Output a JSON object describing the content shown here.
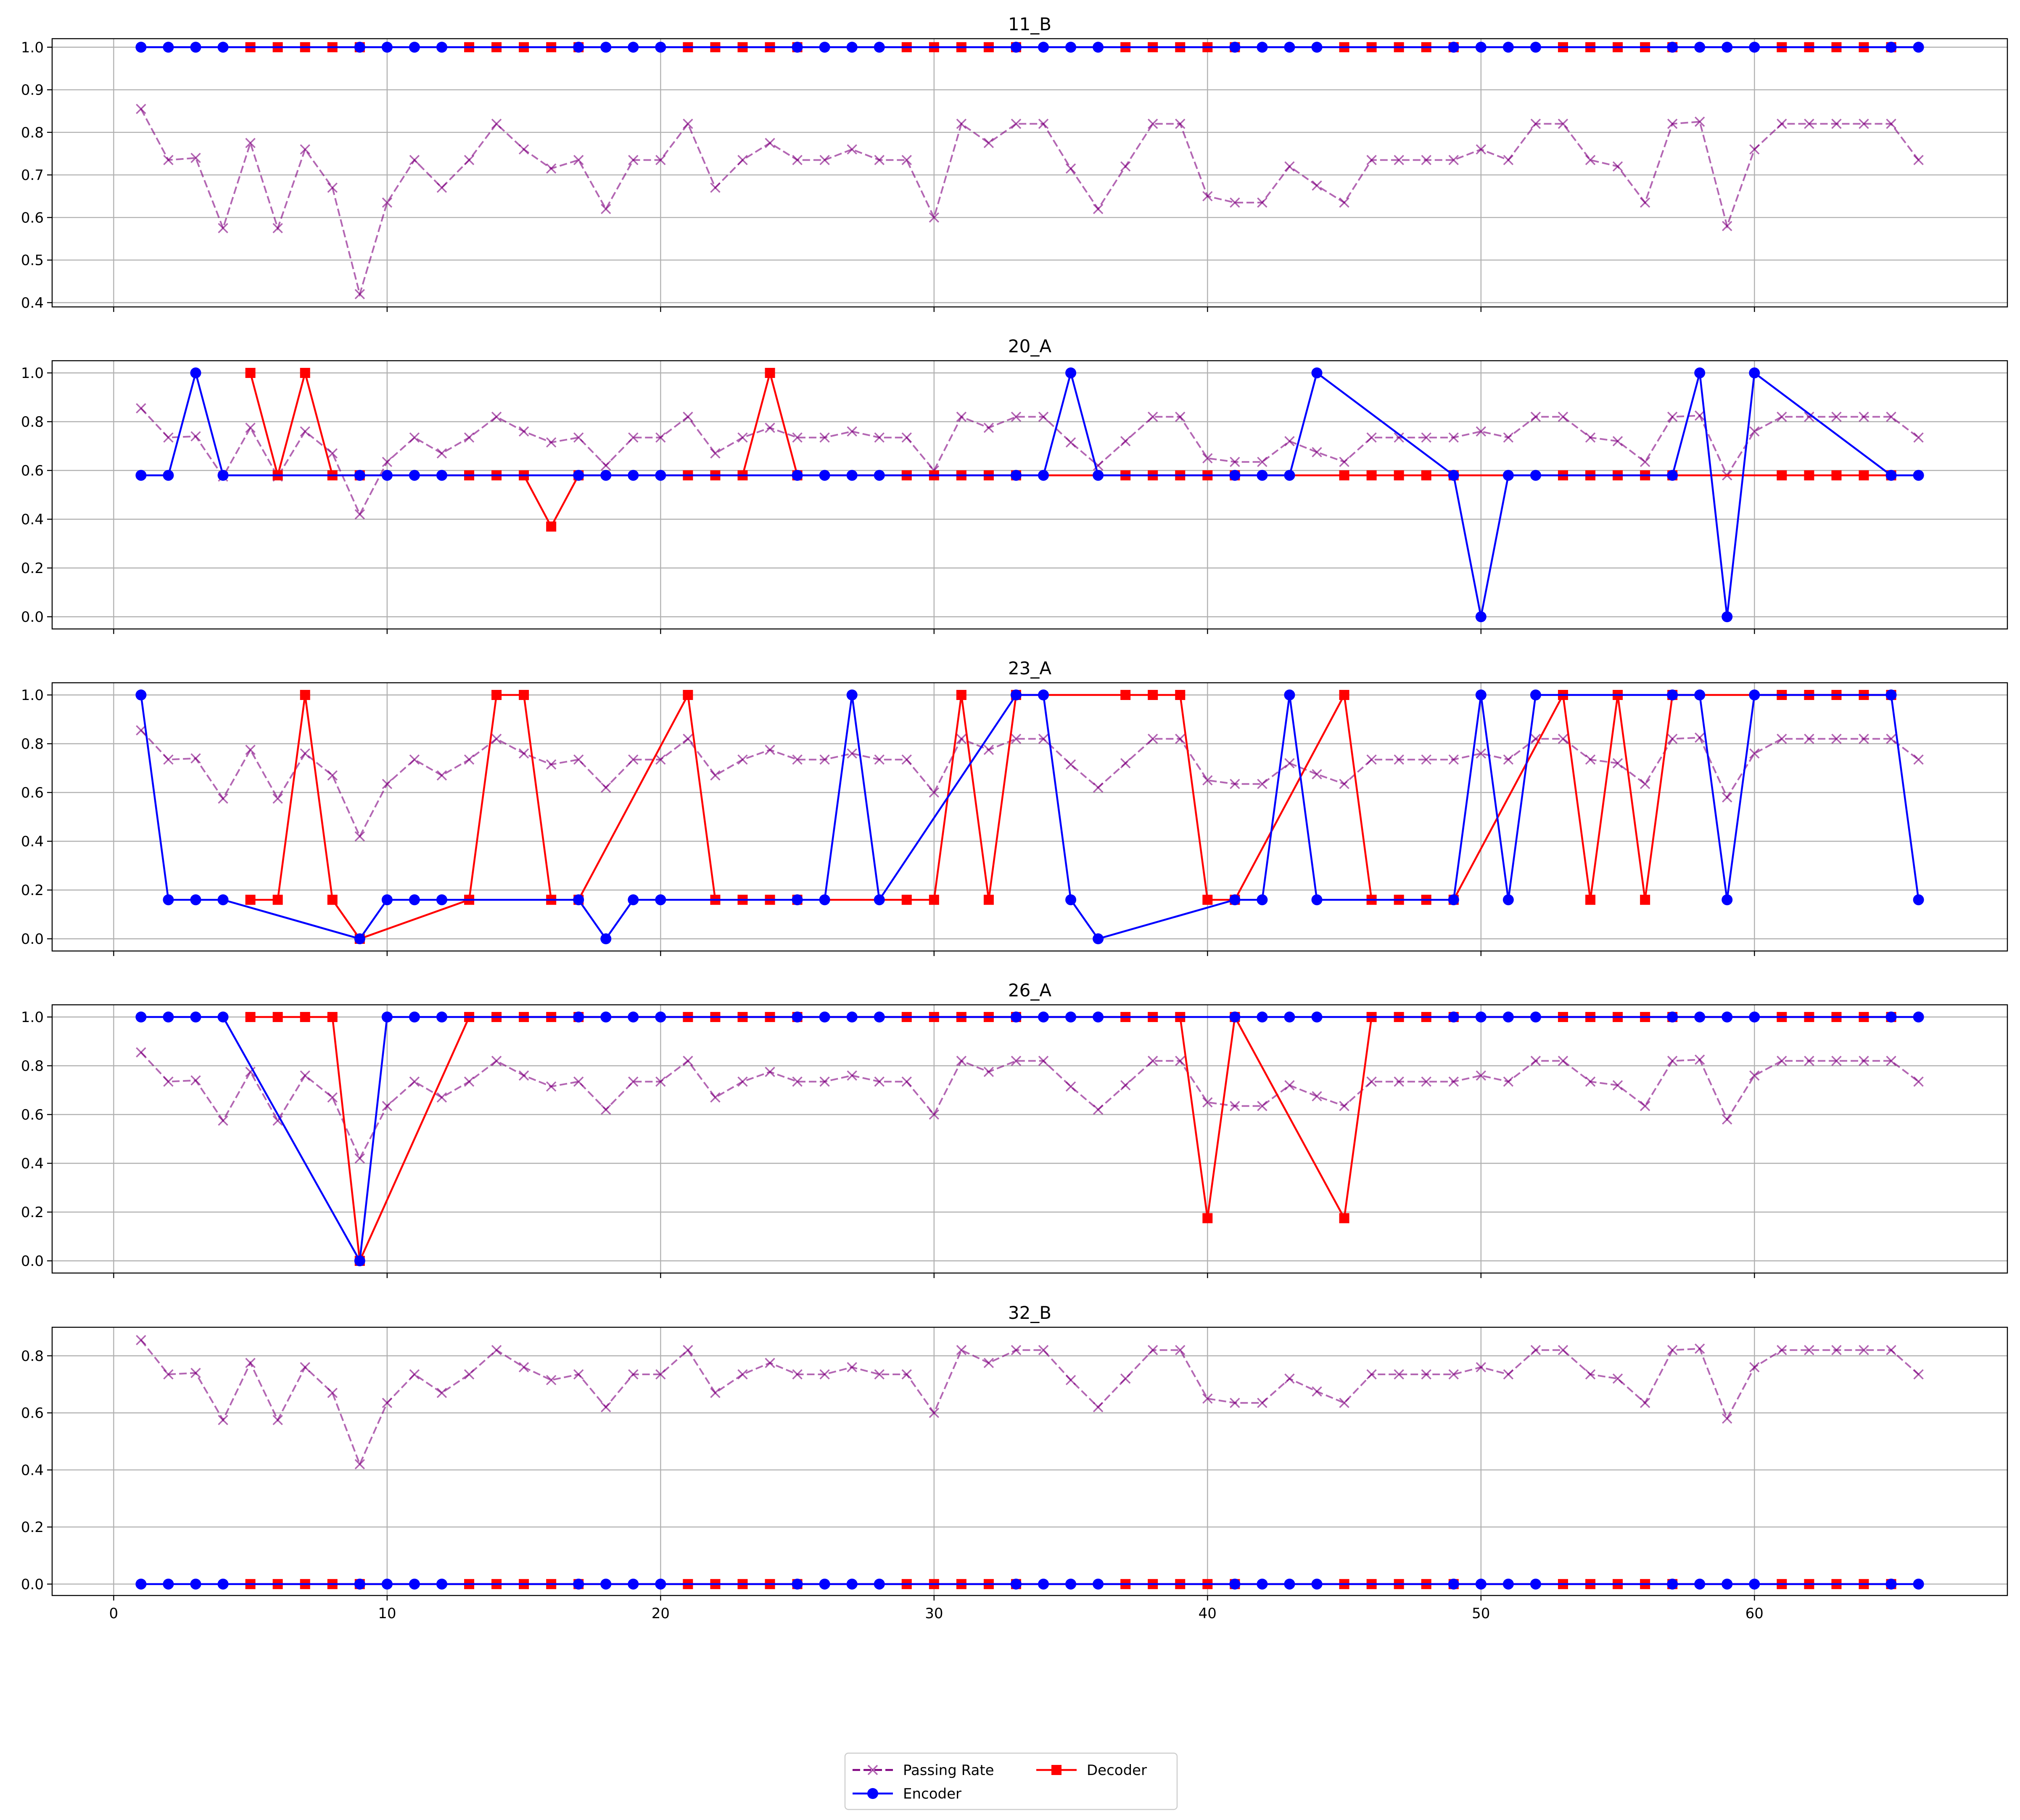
{
  "chart_data": {
    "type": "line",
    "x": [
      1,
      2,
      3,
      4,
      5,
      6,
      7,
      8,
      9,
      10,
      11,
      12,
      13,
      14,
      15,
      16,
      17,
      18,
      19,
      20,
      21,
      22,
      23,
      24,
      25,
      26,
      27,
      28,
      29,
      30,
      31,
      32,
      33,
      34,
      35,
      36,
      37,
      38,
      39,
      40,
      41,
      42,
      43,
      44,
      45,
      46,
      47,
      48,
      49,
      50,
      51,
      52,
      53,
      54,
      55,
      56,
      57,
      58,
      59,
      60,
      61,
      62,
      63,
      64,
      65,
      66
    ],
    "encoder_x": [
      1,
      2,
      3,
      4,
      9,
      10,
      11,
      12,
      17,
      18,
      19,
      20,
      25,
      26,
      27,
      28,
      33,
      34,
      35,
      36,
      41,
      42,
      43,
      44,
      49,
      50,
      51,
      52,
      57,
      58,
      59,
      60,
      65,
      66
    ],
    "decoder_x": [
      5,
      6,
      7,
      8,
      9,
      13,
      14,
      15,
      16,
      17,
      21,
      22,
      23,
      24,
      25,
      29,
      30,
      31,
      32,
      33,
      37,
      38,
      39,
      40,
      41,
      45,
      46,
      47,
      48,
      49,
      53,
      54,
      55,
      56,
      57,
      61,
      62,
      63,
      64,
      65
    ],
    "passing_rate": [
      0.855,
      0.735,
      0.74,
      0.575,
      0.775,
      0.575,
      0.76,
      0.67,
      0.42,
      0.635,
      0.735,
      0.67,
      0.735,
      0.82,
      0.76,
      0.715,
      0.735,
      0.62,
      0.735,
      0.735,
      0.82,
      0.67,
      0.735,
      0.775,
      0.735,
      0.735,
      0.76,
      0.735,
      0.735,
      0.6,
      0.82,
      0.775,
      0.82,
      0.82,
      0.715,
      0.62,
      0.72,
      0.82,
      0.82,
      0.65,
      0.635,
      0.635,
      0.72,
      0.675,
      0.635,
      0.735,
      0.735,
      0.735,
      0.735,
      0.76,
      0.735,
      0.82,
      0.82,
      0.735,
      0.72,
      0.635,
      0.82,
      0.825,
      0.58,
      0.76,
      0.82,
      0.82,
      0.82,
      0.82,
      0.82,
      0.735
    ],
    "xlim": [
      -2.25,
      69.25
    ],
    "xticks": [
      0,
      10,
      20,
      30,
      40,
      50,
      60
    ],
    "legend": {
      "placement": "bottom-center",
      "entries": [
        {
          "label": "Passing Rate",
          "color": "#800080",
          "marker": "x",
          "style": "dashed"
        },
        {
          "label": "Encoder",
          "color": "#0000ff",
          "marker": "circle",
          "style": "solid"
        },
        {
          "label": "Decoder",
          "color": "#ff0000",
          "marker": "square",
          "style": "solid"
        }
      ]
    },
    "panels": [
      {
        "title": "11_B",
        "ylim": [
          0.39,
          1.02
        ],
        "yticks": [
          0.4,
          0.5,
          0.6,
          0.7,
          0.8,
          0.9,
          1.0
        ],
        "ytick_labels": [
          "0.4",
          "0.5",
          "0.6",
          "0.7",
          "0.8",
          "0.9",
          "1.0"
        ],
        "encoder": [
          1,
          1,
          1,
          1,
          1,
          1,
          1,
          1,
          1,
          1,
          1,
          1,
          1,
          1,
          1,
          1,
          1,
          1,
          1,
          1,
          1,
          1,
          1,
          1,
          1,
          1,
          1,
          1,
          1,
          1,
          1,
          1,
          1,
          1
        ],
        "decoder": [
          1,
          1,
          1,
          1,
          1,
          1,
          1,
          1,
          1,
          1,
          1,
          1,
          1,
          1,
          1,
          1,
          1,
          1,
          1,
          1,
          1,
          1,
          1,
          1,
          1,
          1,
          1,
          1,
          1,
          1,
          1,
          1,
          1,
          1,
          1,
          1,
          1,
          1,
          1,
          1
        ]
      },
      {
        "title": "20_A",
        "ylim": [
          -0.05,
          1.05
        ],
        "yticks": [
          0.0,
          0.2,
          0.4,
          0.6,
          0.8,
          1.0
        ],
        "ytick_labels": [
          "0.0",
          "0.2",
          "0.4",
          "0.6",
          "0.8",
          "1.0"
        ],
        "encoder": [
          0.58,
          0.58,
          1,
          0.58,
          0.58,
          0.58,
          0.58,
          0.58,
          0.58,
          0.58,
          0.58,
          0.58,
          0.58,
          0.58,
          0.58,
          0.58,
          0.58,
          0.58,
          1,
          0.58,
          0.58,
          0.58,
          0.58,
          1,
          0.58,
          0,
          0.58,
          0.58,
          0.58,
          1,
          0,
          1,
          0.58,
          0.58
        ],
        "decoder": [
          1,
          0.58,
          1,
          0.58,
          0.58,
          0.58,
          0.58,
          0.58,
          0.37,
          0.58,
          0.58,
          0.58,
          0.58,
          1,
          0.58,
          0.58,
          0.58,
          0.58,
          0.58,
          0.58,
          0.58,
          0.58,
          0.58,
          0.58,
          0.58,
          0.58,
          0.58,
          0.58,
          0.58,
          0.58,
          0.58,
          0.58,
          0.58,
          0.58,
          0.58,
          0.58,
          0.58,
          0.58,
          0.58,
          0.58
        ]
      },
      {
        "title": "23_A",
        "ylim": [
          -0.05,
          1.05
        ],
        "yticks": [
          0.0,
          0.2,
          0.4,
          0.6,
          0.8,
          1.0
        ],
        "ytick_labels": [
          "0.0",
          "0.2",
          "0.4",
          "0.6",
          "0.8",
          "1.0"
        ],
        "encoder": [
          1,
          0.16,
          0.16,
          0.16,
          0,
          0.16,
          0.16,
          0.16,
          0.16,
          0,
          0.16,
          0.16,
          0.16,
          0.16,
          1,
          0.16,
          1,
          1,
          0.16,
          0,
          0.16,
          0.16,
          1,
          0.16,
          0.16,
          1,
          0.16,
          1,
          1,
          1,
          0.16,
          1,
          1,
          0.16
        ],
        "decoder": [
          0.16,
          0.16,
          1,
          0.16,
          0,
          0.16,
          1,
          1,
          0.16,
          0.16,
          1,
          0.16,
          0.16,
          0.16,
          0.16,
          0.16,
          0.16,
          1,
          0.16,
          1,
          1,
          1,
          1,
          0.16,
          0.16,
          1,
          0.16,
          0.16,
          0.16,
          0.16,
          1,
          0.16,
          1,
          0.16,
          1,
          1,
          1,
          1,
          1,
          1
        ]
      },
      {
        "title": "26_A",
        "ylim": [
          -0.05,
          1.05
        ],
        "yticks": [
          0.0,
          0.2,
          0.4,
          0.6,
          0.8,
          1.0
        ],
        "ytick_labels": [
          "0.0",
          "0.2",
          "0.4",
          "0.6",
          "0.8",
          "1.0"
        ],
        "encoder": [
          1,
          1,
          1,
          1,
          0,
          1,
          1,
          1,
          1,
          1,
          1,
          1,
          1,
          1,
          1,
          1,
          1,
          1,
          1,
          1,
          1,
          1,
          1,
          1,
          1,
          1,
          1,
          1,
          1,
          1,
          1,
          1,
          1,
          1
        ],
        "decoder": [
          1,
          1,
          1,
          1,
          0,
          1,
          1,
          1,
          1,
          1,
          1,
          1,
          1,
          1,
          1,
          1,
          1,
          1,
          1,
          1,
          1,
          1,
          1,
          0.175,
          1,
          0.175,
          1,
          1,
          1,
          1,
          1,
          1,
          1,
          1,
          1,
          1,
          1,
          1,
          1,
          1
        ]
      },
      {
        "title": "32_B",
        "ylim": [
          -0.04,
          0.9
        ],
        "yticks": [
          0.0,
          0.2,
          0.4,
          0.6,
          0.8
        ],
        "ytick_labels": [
          "0.0",
          "0.2",
          "0.4",
          "0.6",
          "0.8"
        ],
        "encoder": [
          0,
          0,
          0,
          0,
          0,
          0,
          0,
          0,
          0,
          0,
          0,
          0,
          0,
          0,
          0,
          0,
          0,
          0,
          0,
          0,
          0,
          0,
          0,
          0,
          0,
          0,
          0,
          0,
          0,
          0,
          0,
          0,
          0,
          0
        ],
        "decoder": [
          0,
          0,
          0,
          0,
          0,
          0,
          0,
          0,
          0,
          0,
          0,
          0,
          0,
          0,
          0,
          0,
          0,
          0,
          0,
          0,
          0,
          0,
          0,
          0,
          0,
          0,
          0,
          0,
          0,
          0,
          0,
          0,
          0,
          0,
          0,
          0,
          0,
          0,
          0,
          0
        ]
      }
    ]
  }
}
